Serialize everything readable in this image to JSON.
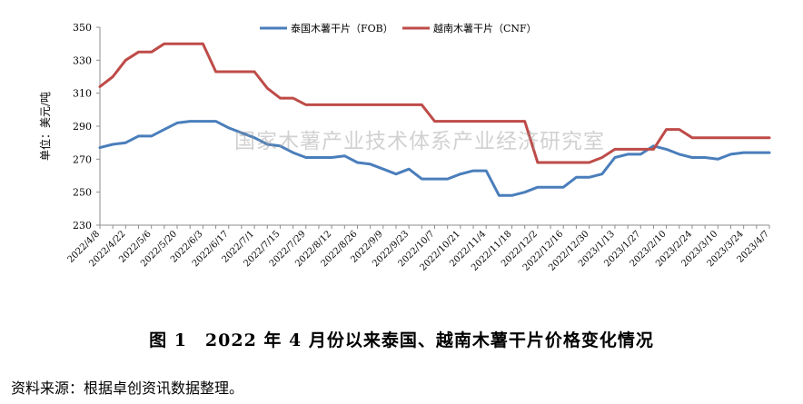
{
  "chart_data": {
    "type": "line",
    "ylabel": "单位：美元/吨",
    "ylim": [
      230,
      350
    ],
    "yticks": [
      230,
      250,
      270,
      290,
      310,
      330,
      350
    ],
    "grid": false,
    "legend_position": "top-center",
    "x": [
      "2022/4/8",
      "2022/4/15",
      "2022/4/22",
      "2022/4/29",
      "2022/5/6",
      "2022/5/13",
      "2022/5/20",
      "2022/5/27",
      "2022/6/3",
      "2022/6/10",
      "2022/6/17",
      "2022/6/24",
      "2022/7/1",
      "2022/7/8",
      "2022/7/15",
      "2022/7/22",
      "2022/7/29",
      "2022/8/5",
      "2022/8/12",
      "2022/8/19",
      "2022/8/26",
      "2022/9/2",
      "2022/9/9",
      "2022/9/16",
      "2022/9/23",
      "2022/9/30",
      "2022/10/7",
      "2022/10/14",
      "2022/10/21",
      "2022/10/28",
      "2022/11/4",
      "2022/11/11",
      "2022/11/18",
      "2022/11/25",
      "2022/12/2",
      "2022/12/9",
      "2022/12/16",
      "2022/12/23",
      "2022/12/30",
      "2023/1/6",
      "2023/1/13",
      "2023/1/20",
      "2023/1/27",
      "2023/2/3",
      "2023/2/10",
      "2023/2/17",
      "2023/2/24",
      "2023/3/3",
      "2023/3/10",
      "2023/3/17",
      "2023/3/24",
      "2023/3/31",
      "2023/4/7"
    ],
    "x_tick_labels": [
      "2022/4/8",
      "2022/4/22",
      "2022/5/6",
      "2022/5/20",
      "2022/6/3",
      "2022/6/17",
      "2022/7/1",
      "2022/7/15",
      "2022/7/29",
      "2022/8/12",
      "2022/8/26",
      "2022/9/9",
      "2022/9/23",
      "2022/10/7",
      "2022/10/21",
      "2022/11/4",
      "2022/11/18",
      "2022/12/2",
      "2022/12/16",
      "2022/12/30",
      "2023/1/13",
      "2023/1/27",
      "2023/2/10",
      "2023/2/24",
      "2023/3/10",
      "2023/3/24",
      "2023/4/7"
    ],
    "series": [
      {
        "name": "泰国木薯干片（FOB）",
        "color": "#4a7ebb",
        "values": [
          277,
          279,
          280,
          284,
          284,
          288,
          292,
          293,
          293,
          293,
          289,
          286,
          283,
          279,
          278,
          274,
          271,
          271,
          271,
          272,
          268,
          267,
          264,
          261,
          264,
          258,
          258,
          258,
          261,
          263,
          263,
          248,
          248,
          250,
          253,
          253,
          253,
          259,
          259,
          261,
          271,
          273,
          273,
          278,
          276,
          273,
          271,
          271,
          270,
          273,
          274,
          274,
          274
        ]
      },
      {
        "name": "越南木薯干片（CNF）",
        "color": "#be4b48",
        "values": [
          314,
          320,
          330,
          335,
          335,
          340,
          340,
          340,
          340,
          323,
          323,
          323,
          323,
          313,
          307,
          307,
          303,
          303,
          303,
          303,
          303,
          303,
          303,
          303,
          303,
          303,
          293,
          293,
          293,
          293,
          293,
          293,
          293,
          293,
          268,
          268,
          268,
          268,
          268,
          271,
          276,
          276,
          276,
          276,
          288,
          288,
          283,
          283,
          283,
          283,
          283,
          283,
          283
        ]
      }
    ]
  },
  "caption": "图 1　2022 年 4 月份以来泰国、越南木薯干片价格变化情况",
  "source_note": "资料来源：根据卓创资讯数据整理。",
  "watermark": "国家木薯产业技术体系产业经济研究室"
}
